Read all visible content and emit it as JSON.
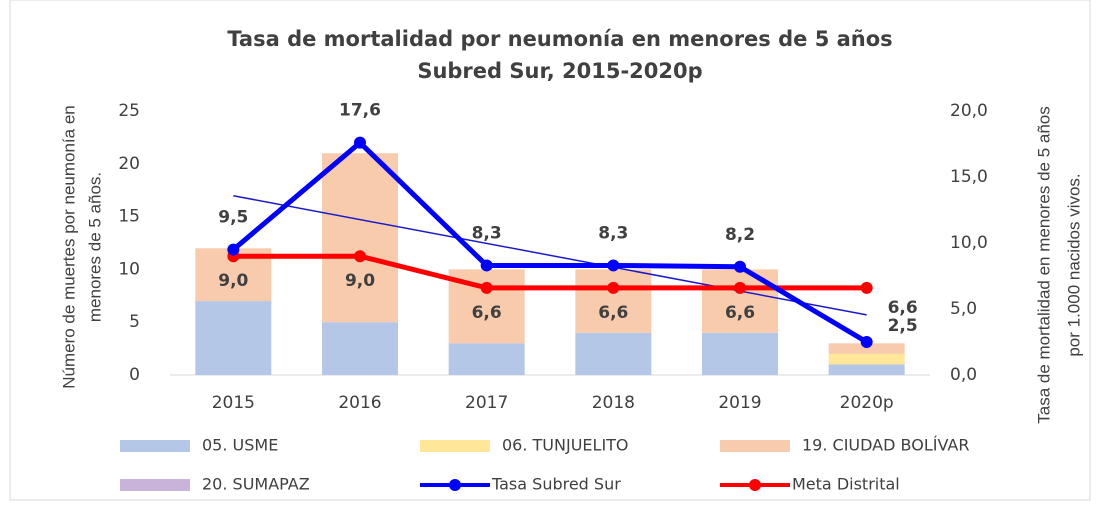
{
  "chart_data": {
    "type": "bar",
    "title": [
      "Tasa de mortalidad por neumonía en menores de 5 años",
      "Subred Sur, 2015-2020p"
    ],
    "ylabel": [
      "Número de muertes por neumonía en",
      "menores de 5 años."
    ],
    "y2label": [
      "Tasa de mortalidad en menores de 5 años",
      "por 1.000 nacidos vivos."
    ],
    "categories": [
      "2015",
      "2016",
      "2017",
      "2018",
      "2019",
      "2020p"
    ],
    "ylim": [
      0,
      25
    ],
    "yticks": [
      0,
      5,
      10,
      15,
      20,
      25
    ],
    "y2lim": [
      0,
      20
    ],
    "y2ticks": [
      {
        "value": 0,
        "label": "0,0"
      },
      {
        "value": 5,
        "label": "5,0"
      },
      {
        "value": 10,
        "label": "10,0"
      },
      {
        "value": 15,
        "label": "15,0"
      },
      {
        "value": 20,
        "label": "20,0"
      }
    ],
    "stacked": true,
    "series": [
      {
        "name": "05. USME",
        "color": "#b4c7e7",
        "values": [
          7,
          5,
          3,
          4,
          4,
          1
        ]
      },
      {
        "name": "06. TUNJUELITO",
        "color": "#ffe699",
        "values": [
          0,
          0,
          0,
          0,
          0,
          1
        ]
      },
      {
        "name": "19. CIUDAD BOLÍVAR",
        "color": "#f8cbad",
        "values": [
          5,
          16,
          7,
          6,
          6,
          1
        ]
      },
      {
        "name": "20. SUMAPAZ",
        "color": "#c9b3db",
        "values": [
          0,
          0,
          0,
          0,
          0,
          0
        ]
      },
      {
        "name": "Tasa Subred Sur",
        "color": "#0000ff",
        "type": "line",
        "axis": "y2",
        "trendline": true,
        "trend_color": "#1a1acc",
        "values": [
          9.5,
          17.6,
          8.3,
          8.3,
          8.2,
          2.5
        ],
        "value_labels": [
          "9,5",
          "17,6",
          "8,3",
          "8,3",
          "8,2",
          "2,5"
        ]
      },
      {
        "name": "Meta Distrital",
        "color": "#ff0000",
        "type": "line",
        "axis": "y2",
        "values": [
          9.0,
          9.0,
          6.6,
          6.6,
          6.6,
          6.6
        ],
        "value_labels": [
          "9,0",
          "9,0",
          "6,6",
          "6,6",
          "6,6",
          "6,6"
        ]
      }
    ]
  }
}
